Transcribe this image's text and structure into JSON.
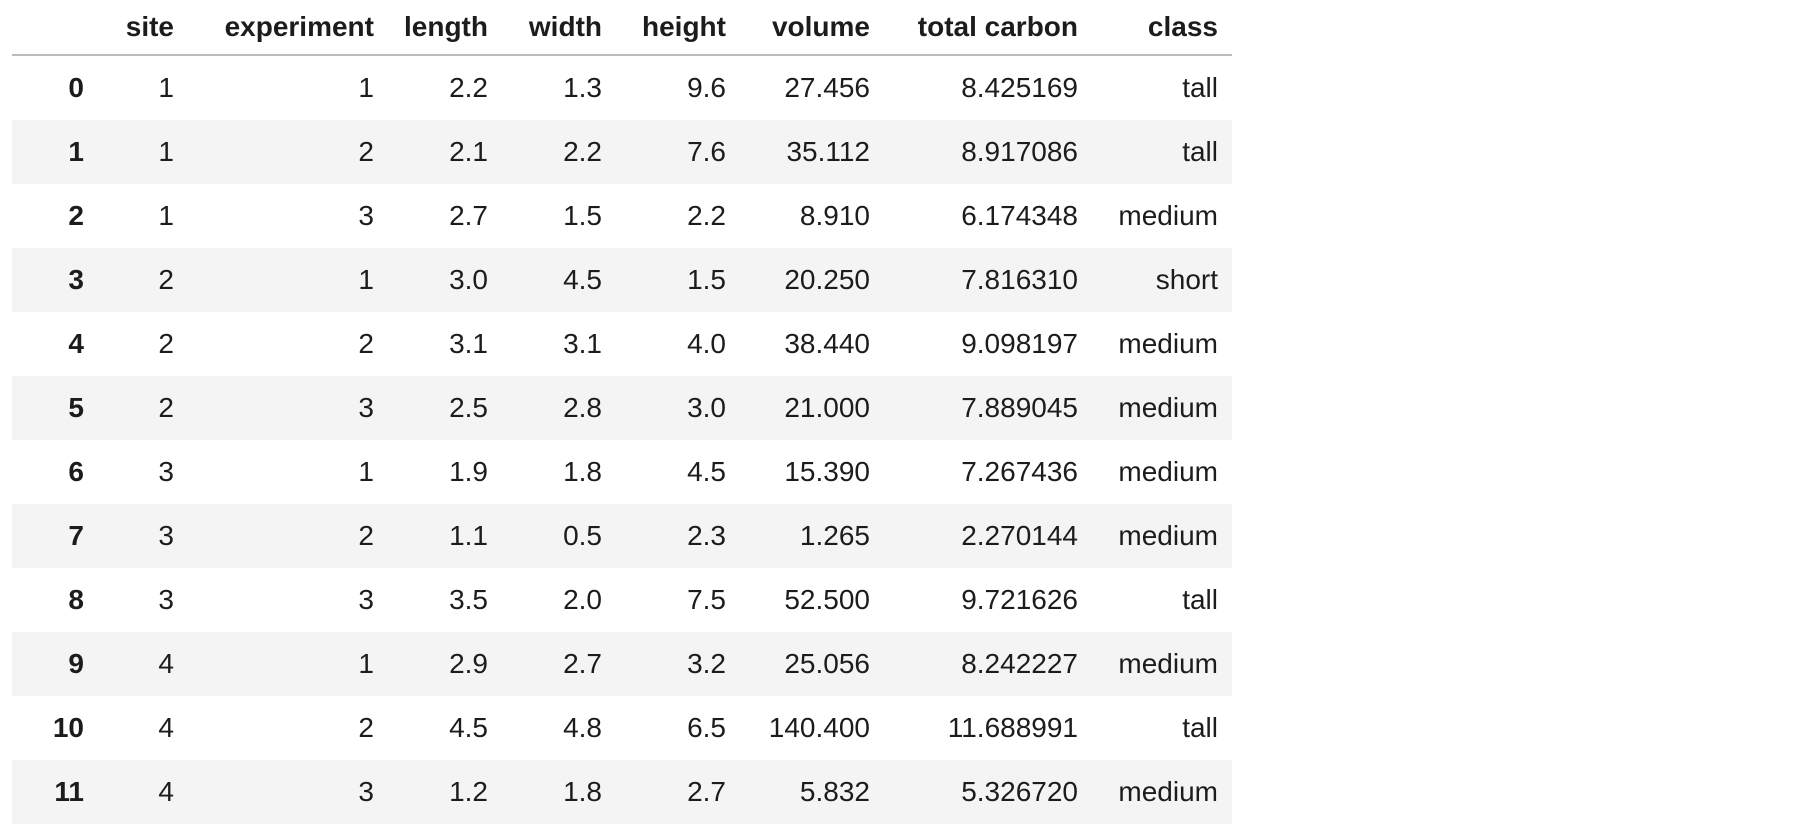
{
  "table": {
    "columns": [
      "",
      "site",
      "experiment",
      "length",
      "width",
      "height",
      "volume",
      "total carbon",
      "class"
    ],
    "rows": [
      {
        "index": "0",
        "site": "1",
        "experiment": "1",
        "length": "2.2",
        "width": "1.3",
        "height": "9.6",
        "volume": "27.456",
        "total_carbon": "8.425169",
        "class": "tall"
      },
      {
        "index": "1",
        "site": "1",
        "experiment": "2",
        "length": "2.1",
        "width": "2.2",
        "height": "7.6",
        "volume": "35.112",
        "total_carbon": "8.917086",
        "class": "tall"
      },
      {
        "index": "2",
        "site": "1",
        "experiment": "3",
        "length": "2.7",
        "width": "1.5",
        "height": "2.2",
        "volume": "8.910",
        "total_carbon": "6.174348",
        "class": "medium"
      },
      {
        "index": "3",
        "site": "2",
        "experiment": "1",
        "length": "3.0",
        "width": "4.5",
        "height": "1.5",
        "volume": "20.250",
        "total_carbon": "7.816310",
        "class": "short"
      },
      {
        "index": "4",
        "site": "2",
        "experiment": "2",
        "length": "3.1",
        "width": "3.1",
        "height": "4.0",
        "volume": "38.440",
        "total_carbon": "9.098197",
        "class": "medium"
      },
      {
        "index": "5",
        "site": "2",
        "experiment": "3",
        "length": "2.5",
        "width": "2.8",
        "height": "3.0",
        "volume": "21.000",
        "total_carbon": "7.889045",
        "class": "medium"
      },
      {
        "index": "6",
        "site": "3",
        "experiment": "1",
        "length": "1.9",
        "width": "1.8",
        "height": "4.5",
        "volume": "15.390",
        "total_carbon": "7.267436",
        "class": "medium"
      },
      {
        "index": "7",
        "site": "3",
        "experiment": "2",
        "length": "1.1",
        "width": "0.5",
        "height": "2.3",
        "volume": "1.265",
        "total_carbon": "2.270144",
        "class": "medium"
      },
      {
        "index": "8",
        "site": "3",
        "experiment": "3",
        "length": "3.5",
        "width": "2.0",
        "height": "7.5",
        "volume": "52.500",
        "total_carbon": "9.721626",
        "class": "tall"
      },
      {
        "index": "9",
        "site": "4",
        "experiment": "1",
        "length": "2.9",
        "width": "2.7",
        "height": "3.2",
        "volume": "25.056",
        "total_carbon": "8.242227",
        "class": "medium"
      },
      {
        "index": "10",
        "site": "4",
        "experiment": "2",
        "length": "4.5",
        "width": "4.8",
        "height": "6.5",
        "volume": "140.400",
        "total_carbon": "11.688991",
        "class": "tall"
      },
      {
        "index": "11",
        "site": "4",
        "experiment": "3",
        "length": "1.2",
        "width": "1.8",
        "height": "2.7",
        "volume": "5.832",
        "total_carbon": "5.326720",
        "class": "medium"
      }
    ]
  },
  "colors": {
    "stripe": "#f4f4f4",
    "header_rule": "#bdbdbd",
    "text": "#1c1c1c"
  }
}
